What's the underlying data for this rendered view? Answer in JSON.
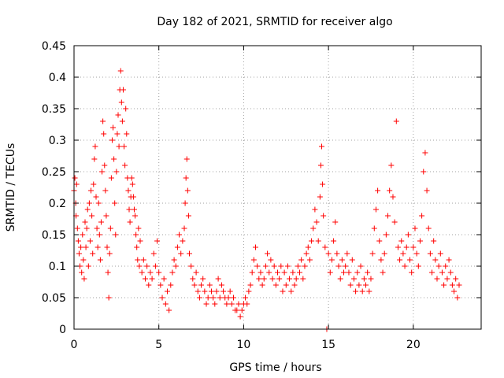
{
  "chart_data": {
    "type": "scatter",
    "title": "Day 182 of 2021, SRMTID for receiver algo",
    "xlabel": "GPS time / hours",
    "ylabel": "SRMTID / TECUs",
    "xlim": [
      0,
      24
    ],
    "ylim": [
      0,
      0.45
    ],
    "x_ticks": [
      0,
      5,
      10,
      15,
      20
    ],
    "x_tick_labels": [
      "0",
      "5",
      "10",
      "15",
      "20"
    ],
    "y_ticks": [
      0,
      0.05,
      0.1,
      0.15,
      0.2,
      0.25,
      0.3,
      0.35,
      0.4,
      0.45
    ],
    "y_tick_labels": [
      "0",
      "0.05",
      "0.1",
      "0.15",
      "0.2",
      "0.25",
      "0.3",
      "0.35",
      "0.4",
      "0.45"
    ],
    "grid": true,
    "marker": "+",
    "series": [
      {
        "name": "SRMTID",
        "color": "#ff0000",
        "points": [
          [
            0.0,
            0.22
          ],
          [
            0.05,
            0.24
          ],
          [
            0.1,
            0.2
          ],
          [
            0.12,
            0.18
          ],
          [
            0.15,
            0.23
          ],
          [
            0.2,
            0.16
          ],
          [
            0.25,
            0.14
          ],
          [
            0.3,
            0.12
          ],
          [
            0.35,
            0.1
          ],
          [
            0.4,
            0.13
          ],
          [
            0.45,
            0.09
          ],
          [
            0.5,
            0.15
          ],
          [
            0.55,
            0.11
          ],
          [
            0.6,
            0.08
          ],
          [
            0.65,
            0.17
          ],
          [
            0.7,
            0.13
          ],
          [
            0.75,
            0.16
          ],
          [
            0.8,
            0.19
          ],
          [
            0.85,
            0.1
          ],
          [
            0.9,
            0.2
          ],
          [
            0.95,
            0.14
          ],
          [
            1.0,
            0.22
          ],
          [
            1.05,
            0.18
          ],
          [
            1.1,
            0.12
          ],
          [
            1.15,
            0.23
          ],
          [
            1.2,
            0.27
          ],
          [
            1.25,
            0.29
          ],
          [
            1.3,
            0.21
          ],
          [
            1.35,
            0.16
          ],
          [
            1.4,
            0.13
          ],
          [
            1.45,
            0.2
          ],
          [
            1.5,
            0.15
          ],
          [
            1.55,
            0.11
          ],
          [
            1.6,
            0.17
          ],
          [
            1.65,
            0.25
          ],
          [
            1.7,
            0.33
          ],
          [
            1.75,
            0.31
          ],
          [
            1.8,
            0.26
          ],
          [
            1.85,
            0.22
          ],
          [
            1.9,
            0.18
          ],
          [
            1.95,
            0.13
          ],
          [
            2.0,
            0.09
          ],
          [
            2.05,
            0.05
          ],
          [
            2.1,
            0.12
          ],
          [
            2.15,
            0.16
          ],
          [
            2.2,
            0.24
          ],
          [
            2.25,
            0.3
          ],
          [
            2.3,
            0.32
          ],
          [
            2.35,
            0.27
          ],
          [
            2.4,
            0.2
          ],
          [
            2.45,
            0.15
          ],
          [
            2.5,
            0.25
          ],
          [
            2.55,
            0.31
          ],
          [
            2.6,
            0.34
          ],
          [
            2.65,
            0.29
          ],
          [
            2.7,
            0.38
          ],
          [
            2.75,
            0.41
          ],
          [
            2.8,
            0.36
          ],
          [
            2.85,
            0.33
          ],
          [
            2.9,
            0.38
          ],
          [
            2.95,
            0.29
          ],
          [
            3.0,
            0.26
          ],
          [
            3.05,
            0.35
          ],
          [
            3.1,
            0.31
          ],
          [
            3.15,
            0.24
          ],
          [
            3.2,
            0.22
          ],
          [
            3.25,
            0.19
          ],
          [
            3.3,
            0.17
          ],
          [
            3.35,
            0.21
          ],
          [
            3.4,
            0.24
          ],
          [
            3.45,
            0.23
          ],
          [
            3.5,
            0.21
          ],
          [
            3.55,
            0.19
          ],
          [
            3.6,
            0.18
          ],
          [
            3.65,
            0.15
          ],
          [
            3.7,
            0.13
          ],
          [
            3.75,
            0.11
          ],
          [
            3.8,
            0.16
          ],
          [
            3.85,
            0.1
          ],
          [
            3.9,
            0.14
          ],
          [
            4.0,
            0.09
          ],
          [
            4.1,
            0.11
          ],
          [
            4.2,
            0.08
          ],
          [
            4.3,
            0.1
          ],
          [
            4.4,
            0.07
          ],
          [
            4.5,
            0.09
          ],
          [
            4.6,
            0.08
          ],
          [
            4.7,
            0.12
          ],
          [
            4.8,
            0.1
          ],
          [
            4.9,
            0.14
          ],
          [
            5.0,
            0.09
          ],
          [
            5.1,
            0.07
          ],
          [
            5.2,
            0.05
          ],
          [
            5.3,
            0.08
          ],
          [
            5.4,
            0.04
          ],
          [
            5.5,
            0.06
          ],
          [
            5.6,
            0.03
          ],
          [
            5.7,
            0.07
          ],
          [
            5.8,
            0.09
          ],
          [
            5.9,
            0.11
          ],
          [
            6.0,
            0.1
          ],
          [
            6.1,
            0.13
          ],
          [
            6.2,
            0.15
          ],
          [
            6.3,
            0.12
          ],
          [
            6.4,
            0.14
          ],
          [
            6.5,
            0.16
          ],
          [
            6.55,
            0.2
          ],
          [
            6.6,
            0.24
          ],
          [
            6.65,
            0.27
          ],
          [
            6.7,
            0.22
          ],
          [
            6.75,
            0.18
          ],
          [
            6.8,
            0.12
          ],
          [
            6.9,
            0.1
          ],
          [
            7.0,
            0.08
          ],
          [
            7.1,
            0.07
          ],
          [
            7.2,
            0.09
          ],
          [
            7.3,
            0.06
          ],
          [
            7.4,
            0.05
          ],
          [
            7.5,
            0.07
          ],
          [
            7.6,
            0.08
          ],
          [
            7.7,
            0.06
          ],
          [
            7.8,
            0.04
          ],
          [
            7.9,
            0.05
          ],
          [
            8.0,
            0.07
          ],
          [
            8.1,
            0.06
          ],
          [
            8.2,
            0.05
          ],
          [
            8.3,
            0.04
          ],
          [
            8.4,
            0.06
          ],
          [
            8.5,
            0.08
          ],
          [
            8.6,
            0.05
          ],
          [
            8.7,
            0.07
          ],
          [
            8.8,
            0.06
          ],
          [
            8.9,
            0.05
          ],
          [
            9.0,
            0.04
          ],
          [
            9.1,
            0.05
          ],
          [
            9.2,
            0.06
          ],
          [
            9.3,
            0.04
          ],
          [
            9.4,
            0.05
          ],
          [
            9.5,
            0.03
          ],
          [
            9.6,
            0.03
          ],
          [
            9.7,
            0.04
          ],
          [
            9.8,
            0.02
          ],
          [
            9.9,
            0.03
          ],
          [
            10.0,
            0.04
          ],
          [
            10.1,
            0.05
          ],
          [
            10.2,
            0.04
          ],
          [
            10.3,
            0.06
          ],
          [
            10.4,
            0.07
          ],
          [
            10.5,
            0.09
          ],
          [
            10.6,
            0.11
          ],
          [
            10.7,
            0.13
          ],
          [
            10.8,
            0.1
          ],
          [
            10.9,
            0.08
          ],
          [
            11.0,
            0.09
          ],
          [
            11.1,
            0.07
          ],
          [
            11.2,
            0.08
          ],
          [
            11.3,
            0.1
          ],
          [
            11.4,
            0.12
          ],
          [
            11.5,
            0.09
          ],
          [
            11.6,
            0.11
          ],
          [
            11.7,
            0.08
          ],
          [
            11.8,
            0.1
          ],
          [
            11.9,
            0.07
          ],
          [
            12.0,
            0.09
          ],
          [
            12.1,
            0.08
          ],
          [
            12.2,
            0.1
          ],
          [
            12.3,
            0.06
          ],
          [
            12.4,
            0.09
          ],
          [
            12.5,
            0.07
          ],
          [
            12.6,
            0.1
          ],
          [
            12.7,
            0.08
          ],
          [
            12.8,
            0.06
          ],
          [
            12.9,
            0.09
          ],
          [
            13.0,
            0.07
          ],
          [
            13.1,
            0.08
          ],
          [
            13.2,
            0.1
          ],
          [
            13.3,
            0.09
          ],
          [
            13.4,
            0.11
          ],
          [
            13.5,
            0.08
          ],
          [
            13.6,
            0.1
          ],
          [
            13.7,
            0.12
          ],
          [
            13.8,
            0.13
          ],
          [
            13.9,
            0.11
          ],
          [
            14.0,
            0.14
          ],
          [
            14.1,
            0.16
          ],
          [
            14.2,
            0.19
          ],
          [
            14.3,
            0.17
          ],
          [
            14.4,
            0.14
          ],
          [
            14.5,
            0.21
          ],
          [
            14.55,
            0.26
          ],
          [
            14.6,
            0.29
          ],
          [
            14.65,
            0.23
          ],
          [
            14.7,
            0.18
          ],
          [
            14.8,
            0.13
          ],
          [
            14.9,
            0.0
          ],
          [
            15.0,
            0.12
          ],
          [
            15.1,
            0.09
          ],
          [
            15.2,
            0.11
          ],
          [
            15.3,
            0.14
          ],
          [
            15.4,
            0.17
          ],
          [
            15.5,
            0.12
          ],
          [
            15.6,
            0.1
          ],
          [
            15.7,
            0.08
          ],
          [
            15.8,
            0.11
          ],
          [
            15.9,
            0.09
          ],
          [
            16.0,
            0.1
          ],
          [
            16.1,
            0.12
          ],
          [
            16.2,
            0.09
          ],
          [
            16.3,
            0.07
          ],
          [
            16.4,
            0.11
          ],
          [
            16.5,
            0.08
          ],
          [
            16.6,
            0.06
          ],
          [
            16.7,
            0.09
          ],
          [
            16.8,
            0.07
          ],
          [
            16.9,
            0.1
          ],
          [
            17.0,
            0.06
          ],
          [
            17.1,
            0.08
          ],
          [
            17.2,
            0.07
          ],
          [
            17.3,
            0.09
          ],
          [
            17.4,
            0.06
          ],
          [
            17.5,
            0.08
          ],
          [
            17.6,
            0.12
          ],
          [
            17.7,
            0.16
          ],
          [
            17.8,
            0.19
          ],
          [
            17.9,
            0.22
          ],
          [
            18.0,
            0.14
          ],
          [
            18.1,
            0.11
          ],
          [
            18.2,
            0.09
          ],
          [
            18.3,
            0.12
          ],
          [
            18.4,
            0.15
          ],
          [
            18.5,
            0.18
          ],
          [
            18.6,
            0.22
          ],
          [
            18.7,
            0.26
          ],
          [
            18.8,
            0.21
          ],
          [
            18.9,
            0.17
          ],
          [
            19.0,
            0.33
          ],
          [
            19.1,
            0.13
          ],
          [
            19.2,
            0.11
          ],
          [
            19.3,
            0.14
          ],
          [
            19.4,
            0.12
          ],
          [
            19.5,
            0.1
          ],
          [
            19.6,
            0.13
          ],
          [
            19.7,
            0.15
          ],
          [
            19.8,
            0.11
          ],
          [
            19.9,
            0.09
          ],
          [
            20.0,
            0.13
          ],
          [
            20.1,
            0.16
          ],
          [
            20.2,
            0.12
          ],
          [
            20.3,
            0.1
          ],
          [
            20.4,
            0.14
          ],
          [
            20.5,
            0.18
          ],
          [
            20.6,
            0.25
          ],
          [
            20.7,
            0.28
          ],
          [
            20.8,
            0.22
          ],
          [
            20.9,
            0.16
          ],
          [
            21.0,
            0.12
          ],
          [
            21.1,
            0.09
          ],
          [
            21.2,
            0.14
          ],
          [
            21.3,
            0.11
          ],
          [
            21.4,
            0.08
          ],
          [
            21.5,
            0.1
          ],
          [
            21.6,
            0.12
          ],
          [
            21.7,
            0.09
          ],
          [
            21.8,
            0.07
          ],
          [
            21.9,
            0.1
          ],
          [
            22.0,
            0.08
          ],
          [
            22.1,
            0.11
          ],
          [
            22.2,
            0.09
          ],
          [
            22.3,
            0.07
          ],
          [
            22.4,
            0.06
          ],
          [
            22.5,
            0.08
          ],
          [
            22.6,
            0.05
          ],
          [
            22.7,
            0.07
          ]
        ]
      }
    ]
  }
}
